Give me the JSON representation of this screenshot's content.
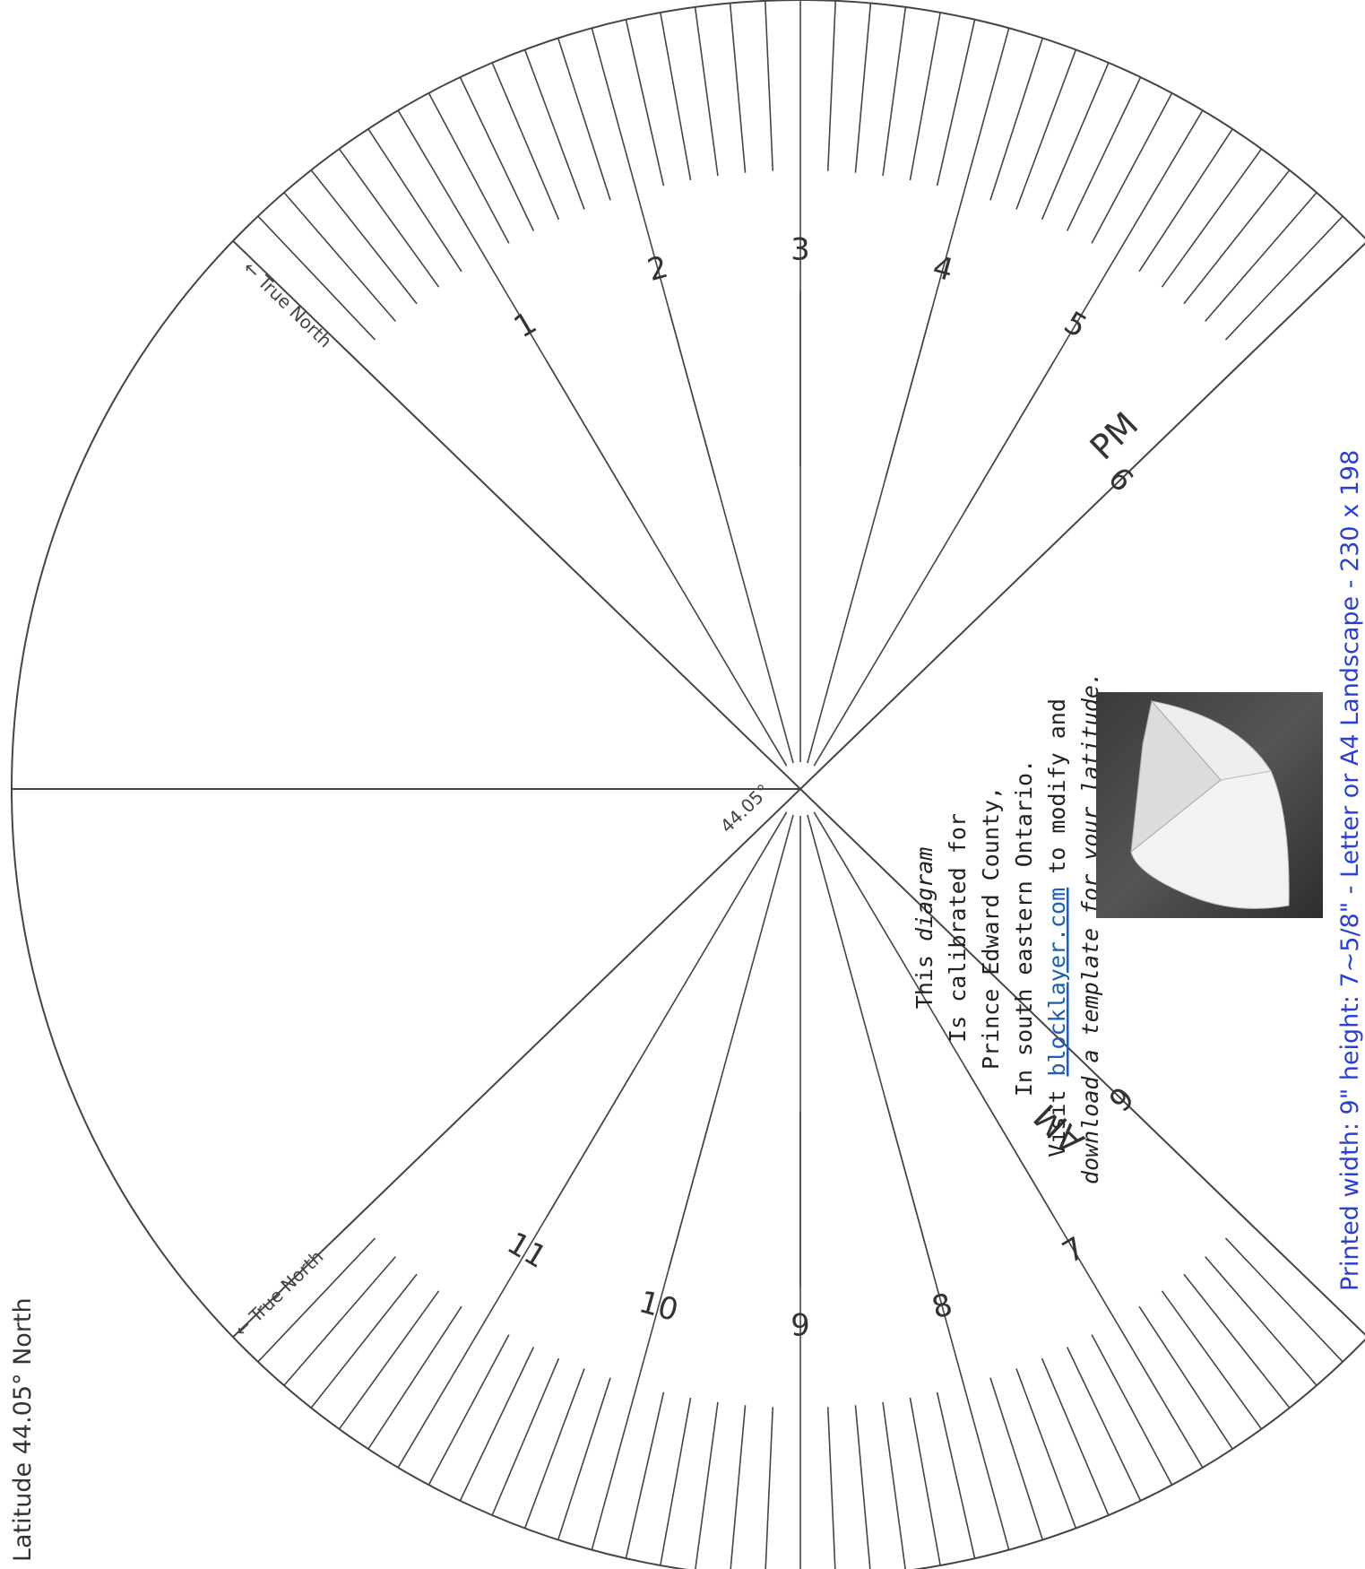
{
  "diagram": {
    "latitude_label": "Latitude 44.05° North",
    "angle_label": "44.05°",
    "true_north_upper": "← True North",
    "true_north_lower": "← True North",
    "pm_label": "PM",
    "am_label": "AM",
    "pm_hours": [
      "1",
      "2",
      "3",
      "4",
      "5",
      "6"
    ],
    "am_hours": [
      "11",
      "10",
      "9",
      "8",
      "7",
      "6"
    ],
    "note": {
      "line1a": "This ",
      "line1b": "diagram",
      "line2": "Is calibrated for",
      "line3": "Prince Edward County,",
      "line4": "In south eastern Ontario.",
      "line5a": "Visit ",
      "line5_link": "blocklayer.com",
      "line5b": " to modify and",
      "line6": "download a template for your latitude."
    },
    "print_info": "Printed width: 9\" height: 7~5/8\" - Letter or A4 Landscape - 230 x 198",
    "colors": {
      "print_info": "#2a3fd8",
      "lines": "#444444",
      "link": "#1a5fb4"
    }
  }
}
